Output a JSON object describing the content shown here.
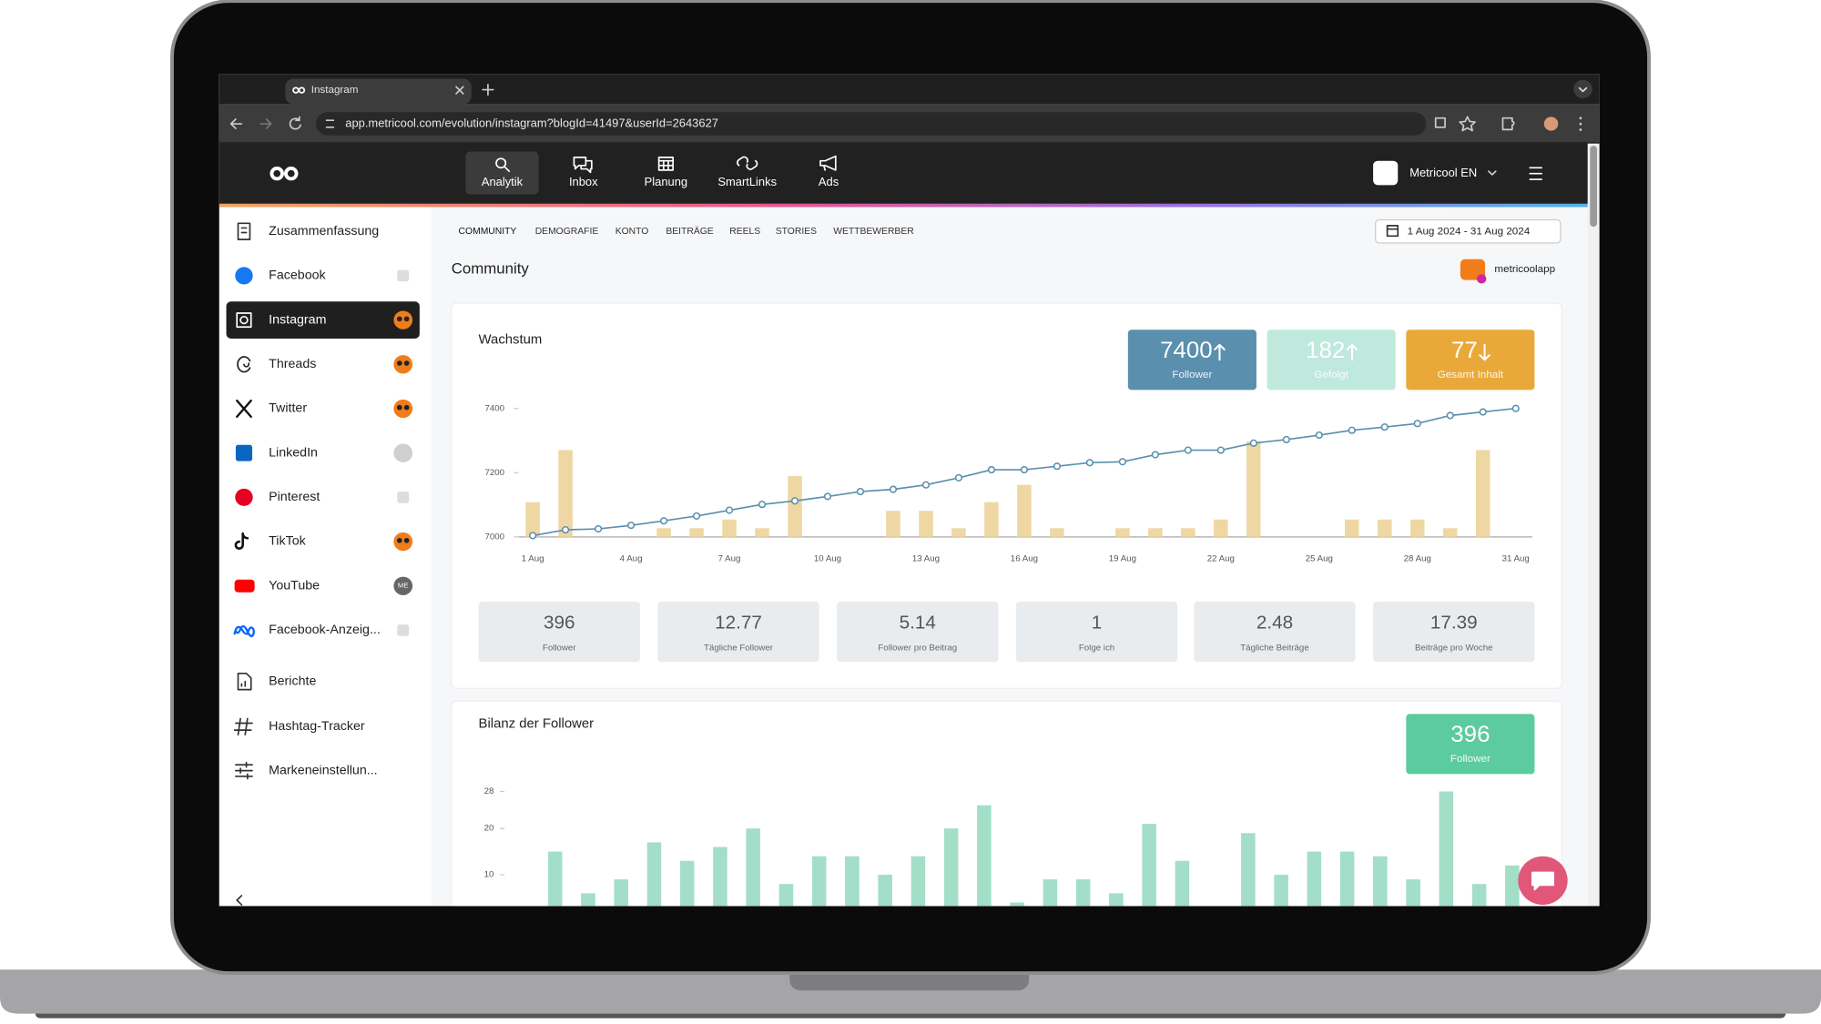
{
  "browser": {
    "tab_title": "Instagram",
    "url": "app.metricool.com/evolution/instagram?blogId=41497&userId=2643627"
  },
  "header": {
    "nav": [
      "Analytik",
      "Inbox",
      "Planung",
      "SmartLinks",
      "Ads"
    ],
    "active_nav": 0,
    "account": "Metricool EN"
  },
  "sidebar": {
    "networks": [
      {
        "label": "Zusammenfassung"
      },
      {
        "label": "Facebook"
      },
      {
        "label": "Instagram"
      },
      {
        "label": "Threads"
      },
      {
        "label": "Twitter"
      },
      {
        "label": "LinkedIn"
      },
      {
        "label": "Pinterest"
      },
      {
        "label": "TikTok"
      },
      {
        "label": "YouTube",
        "badge": "ME"
      },
      {
        "label": "Facebook-Anzeig..."
      }
    ],
    "active": 2,
    "tools": [
      "Berichte",
      "Hashtag-Tracker",
      "Markeneinstellun..."
    ]
  },
  "tabs": [
    "COMMUNITY",
    "DEMOGRAFIE",
    "KONTO",
    "BEITRÄGE",
    "REELS",
    "STORIES",
    "WETTBEWERBER"
  ],
  "date_range": "1 Aug 2024 - 31 Aug 2024",
  "section_title": "Community",
  "account_handle": "metricoolapp",
  "growth": {
    "title": "Wachstum",
    "kpis": [
      {
        "value": 7400,
        "label": "Follower",
        "trend": "up",
        "color": "#5b8fae"
      },
      {
        "value": 182,
        "label": "Gefolgt",
        "trend": "up",
        "color": "#bfe9dd"
      },
      {
        "value": 77,
        "label": "Gesamt Inhalt",
        "trend": "down",
        "color": "#e9a93a"
      }
    ],
    "chart": {
      "categories": [
        "1 Aug",
        null,
        null,
        "4 Aug",
        null,
        null,
        "7 Aug",
        null,
        null,
        "10 Aug",
        null,
        null,
        "13 Aug",
        null,
        null,
        "16 Aug",
        null,
        null,
        "19 Aug",
        null,
        null,
        "22 Aug",
        null,
        null,
        "25 Aug",
        null,
        null,
        "28 Aug",
        null,
        null,
        "31 Aug"
      ],
      "ylim": [
        7000,
        7400
      ],
      "yticks": [
        7000,
        7200,
        7400
      ],
      "grid": false,
      "line": {
        "color": "#5b8fae",
        "values": [
          7004,
          7022,
          7025,
          7036,
          7050,
          7065,
          7083,
          7101,
          7112,
          7126,
          7141,
          7148,
          7162,
          7184,
          7209,
          7209,
          7220,
          7231,
          7234,
          7256,
          7270,
          7270,
          7292,
          7303,
          7317,
          7332,
          7342,
          7353,
          7378,
          7389,
          7400
        ]
      },
      "bars": {
        "color": "#efd7a4",
        "values": [
          4,
          10,
          0,
          0,
          1,
          1,
          2,
          1,
          7,
          0,
          0,
          3,
          3,
          1,
          4,
          6,
          1,
          0,
          1,
          1,
          1,
          2,
          11,
          0,
          0,
          2,
          2,
          2,
          1,
          10,
          0
        ]
      }
    }
  },
  "stats": [
    {
      "value": 396,
      "label": "Follower"
    },
    {
      "value": 12.77,
      "label": "Tägliche Follower"
    },
    {
      "value": 5.14,
      "label": "Follower pro Beitrag"
    },
    {
      "value": 1,
      "label": "Folge ich"
    },
    {
      "value": 2.48,
      "label": "Tägliche Beiträge"
    },
    {
      "value": 17.39,
      "label": "Beiträge pro Woche"
    }
  ],
  "balance": {
    "title": "Bilanz der Follower",
    "kpi": {
      "value": 396,
      "label": "Follower",
      "color": "#5ccba0"
    },
    "chart": {
      "ylim": [
        0,
        28
      ],
      "yticks": [
        10,
        20,
        28
      ],
      "color": "#a3dec8",
      "values": [
        15,
        6,
        9,
        17,
        13,
        16,
        20,
        8,
        14,
        14,
        10,
        14,
        20,
        25,
        4,
        9,
        9,
        6,
        21,
        13,
        0,
        19,
        10,
        15,
        15,
        14,
        9,
        28,
        8,
        12
      ]
    }
  }
}
